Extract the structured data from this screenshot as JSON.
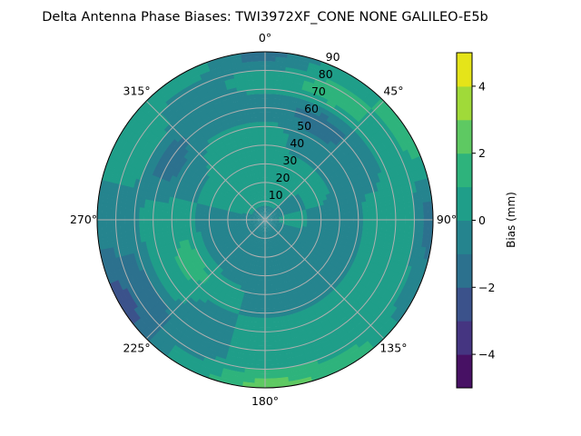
{
  "chart_data": {
    "type": "heatmap",
    "subtype": "polar-contourf",
    "title": "Delta Antenna Phase Biases: TWI3972XF_CONE  NONE GALILEO-E5b",
    "theta_zero": "top",
    "theta_direction": "clockwise",
    "theta_tick_labels": [
      "0°",
      "45°",
      "90°",
      "135°",
      "180°",
      "225°",
      "270°",
      "315°"
    ],
    "radial_tick_labels": [
      "10",
      "20",
      "30",
      "40",
      "50",
      "60",
      "70",
      "80",
      "90"
    ],
    "rlim": [
      0,
      90
    ],
    "grid": true,
    "colorbar": {
      "label": "Bias (mm)",
      "levels": [
        -5,
        -4,
        -3,
        -2,
        -1,
        0,
        1,
        2,
        3,
        4,
        5
      ],
      "tick_labels": [
        "−4",
        "−2",
        "0",
        "2",
        "4"
      ],
      "ticks": [
        -4,
        -2,
        0,
        2,
        4
      ],
      "colormap": "viridis",
      "colors": [
        "#471164",
        "#453581",
        "#3b528b",
        "#2c718e",
        "#25848e",
        "#1f9e89",
        "#2eb37c",
        "#5ec962",
        "#a0da39",
        "#e5e419"
      ]
    },
    "azimuth_deg": [
      0,
      30,
      60,
      90,
      120,
      150,
      180,
      210,
      240,
      270,
      300,
      330
    ],
    "zenith_deg": [
      0,
      15,
      30,
      45,
      60,
      75,
      90
    ],
    "values_mm": [
      [
        -0.5,
        0.5,
        0.5,
        0.5,
        -0.5,
        0.5,
        -1.5
      ],
      [
        -0.5,
        0.5,
        0.5,
        -0.5,
        -1.5,
        1.5,
        0.5
      ],
      [
        -0.5,
        -0.5,
        0.5,
        -0.5,
        -0.5,
        0.5,
        1.5
      ],
      [
        -0.5,
        0.5,
        -0.5,
        -0.5,
        0.5,
        0.5,
        -1.5
      ],
      [
        -0.5,
        -0.5,
        -0.5,
        -0.5,
        0.5,
        0.5,
        -0.5
      ],
      [
        -0.5,
        -0.5,
        -0.5,
        -0.5,
        0.5,
        0.5,
        1.5
      ],
      [
        -0.5,
        -0.5,
        -0.5,
        -0.5,
        0.5,
        0.5,
        2.5
      ],
      [
        -0.5,
        -0.5,
        -0.5,
        0.5,
        -0.5,
        -0.5,
        0.5
      ],
      [
        -0.5,
        -0.5,
        -0.5,
        1.5,
        0.5,
        -1.5,
        -2.5
      ],
      [
        -0.5,
        -0.5,
        -0.5,
        0.5,
        0.5,
        -0.5,
        -0.5
      ],
      [
        -0.5,
        0.5,
        0.5,
        -0.5,
        -1.5,
        0.5,
        0.5
      ],
      [
        -0.5,
        0.5,
        0.5,
        0.5,
        -0.5,
        -0.5,
        0.5
      ]
    ]
  }
}
